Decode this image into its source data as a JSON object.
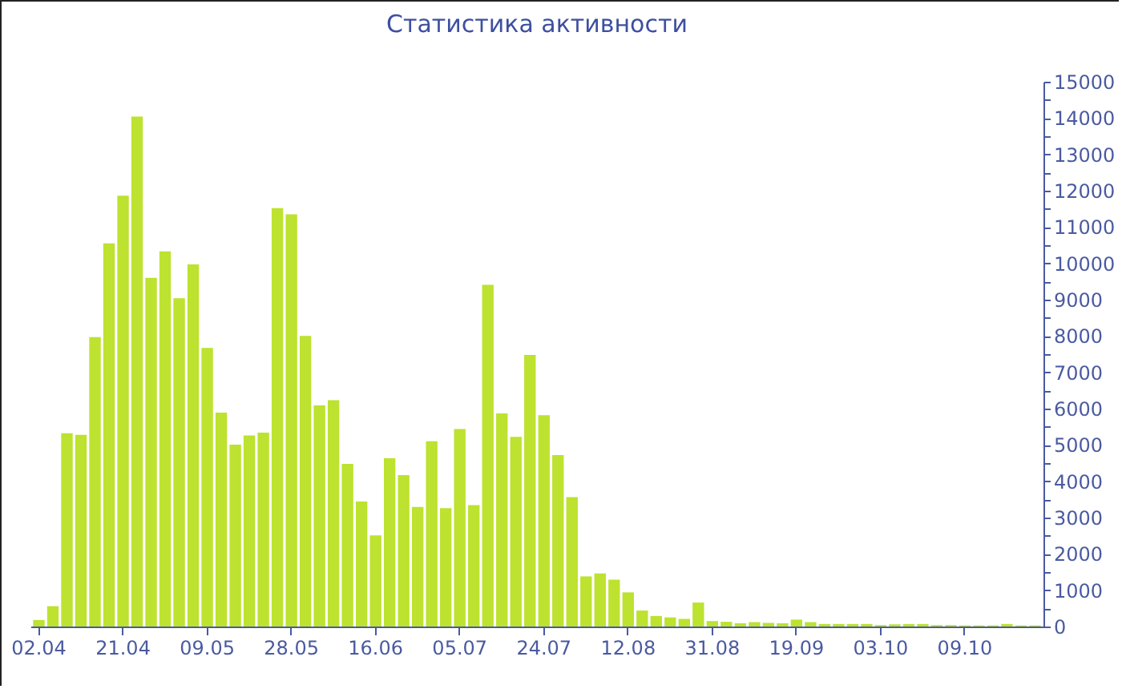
{
  "chart_data": {
    "type": "bar",
    "title": "Статистика активности",
    "categories": [
      "02.04",
      null,
      null,
      null,
      null,
      null,
      "21.04",
      null,
      null,
      null,
      null,
      null,
      "09.05",
      null,
      null,
      null,
      null,
      null,
      "28.05",
      null,
      null,
      null,
      null,
      null,
      "16.06",
      null,
      null,
      null,
      null,
      null,
      "05.07",
      null,
      null,
      null,
      null,
      null,
      "24.07",
      null,
      null,
      null,
      null,
      null,
      "12.08",
      null,
      null,
      null,
      null,
      null,
      "31.08",
      null,
      null,
      null,
      null,
      null,
      "19.09",
      null,
      null,
      null,
      null,
      null,
      "03.10",
      null,
      null,
      null,
      null,
      null,
      "09.10",
      null,
      null,
      null,
      null,
      null
    ],
    "values": [
      180,
      560,
      5320,
      5280,
      7970,
      10550,
      11860,
      14040,
      9600,
      10330,
      9040,
      9970,
      7670,
      5890,
      5010,
      5260,
      5340,
      11520,
      11350,
      8000,
      6090,
      6230,
      4480,
      3440,
      2510,
      4630,
      4170,
      3290,
      5100,
      3260,
      5440,
      3340,
      9410,
      5870,
      5220,
      7480,
      5820,
      4720,
      3560,
      1380,
      1460,
      1290,
      940,
      440,
      290,
      250,
      210,
      660,
      150,
      130,
      90,
      120,
      100,
      90,
      190,
      120,
      70,
      70,
      70,
      70,
      40,
      60,
      70,
      70,
      40,
      40,
      30,
      30,
      30,
      70,
      30,
      30
    ],
    "color": "#bde22f",
    "ylim": [
      0,
      15000
    ],
    "yticks": [
      0,
      {
        "value": 500,
        "label": null
      },
      1000,
      {
        "value": 1500,
        "label": null
      },
      2000,
      {
        "value": 2500,
        "label": null
      },
      3000,
      {
        "value": 3500,
        "label": null
      },
      4000,
      {
        "value": 4500,
        "label": null
      },
      5000,
      {
        "value": 5500,
        "label": null
      },
      6000,
      {
        "value": 6500,
        "label": null
      },
      7000,
      {
        "value": 7500,
        "label": null
      },
      8000,
      {
        "value": 8500,
        "label": null
      },
      9000,
      {
        "value": 9500,
        "label": null
      },
      10000,
      {
        "value": 10500,
        "label": null
      },
      11000,
      {
        "value": 11500,
        "label": null
      },
      12000,
      {
        "value": 12500,
        "label": null
      },
      13000,
      {
        "value": 13500,
        "label": null
      },
      14000,
      {
        "value": 14500,
        "label": null
      },
      15000
    ]
  }
}
